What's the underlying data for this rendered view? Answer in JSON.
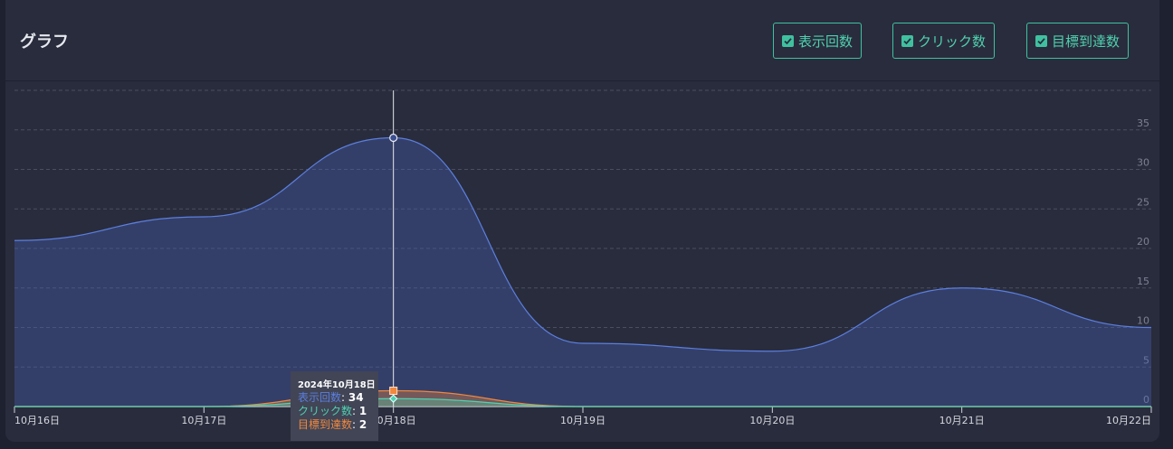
{
  "header": {
    "title": "グラフ",
    "toggles": [
      {
        "label": "表示回数",
        "checked": true
      },
      {
        "label": "クリック数",
        "checked": true
      },
      {
        "label": "目標到達数",
        "checked": true
      }
    ]
  },
  "colors": {
    "impressions": "#5b7fe0",
    "clicks": "#4fd1b0",
    "goals": "#f0883e",
    "accent": "#3fc1a0"
  },
  "chart_data": {
    "type": "area",
    "categories": [
      "10月16日",
      "10月17日",
      "10月18日",
      "10月19日",
      "10月20日",
      "10月21日",
      "10月22日"
    ],
    "series": [
      {
        "name": "表示回数",
        "values": [
          21,
          24,
          34,
          8,
          7,
          15,
          10
        ]
      },
      {
        "name": "クリック数",
        "values": [
          0,
          0,
          1,
          0,
          0,
          0,
          0
        ]
      },
      {
        "name": "目標到達数",
        "values": [
          0,
          0,
          2,
          0,
          0,
          0,
          0
        ]
      }
    ],
    "ylim": [
      0,
      40
    ],
    "yticks": [
      "0",
      "5",
      "10",
      "15",
      "20",
      "25",
      "30",
      "35"
    ],
    "grid": true,
    "crosshair_index": 2
  },
  "tooltip": {
    "date": "2024年10月18日",
    "rows": [
      {
        "label": "表示回数",
        "value": "34"
      },
      {
        "label": "クリック数",
        "value": "1"
      },
      {
        "label": "目標到達数",
        "value": "2"
      }
    ]
  }
}
